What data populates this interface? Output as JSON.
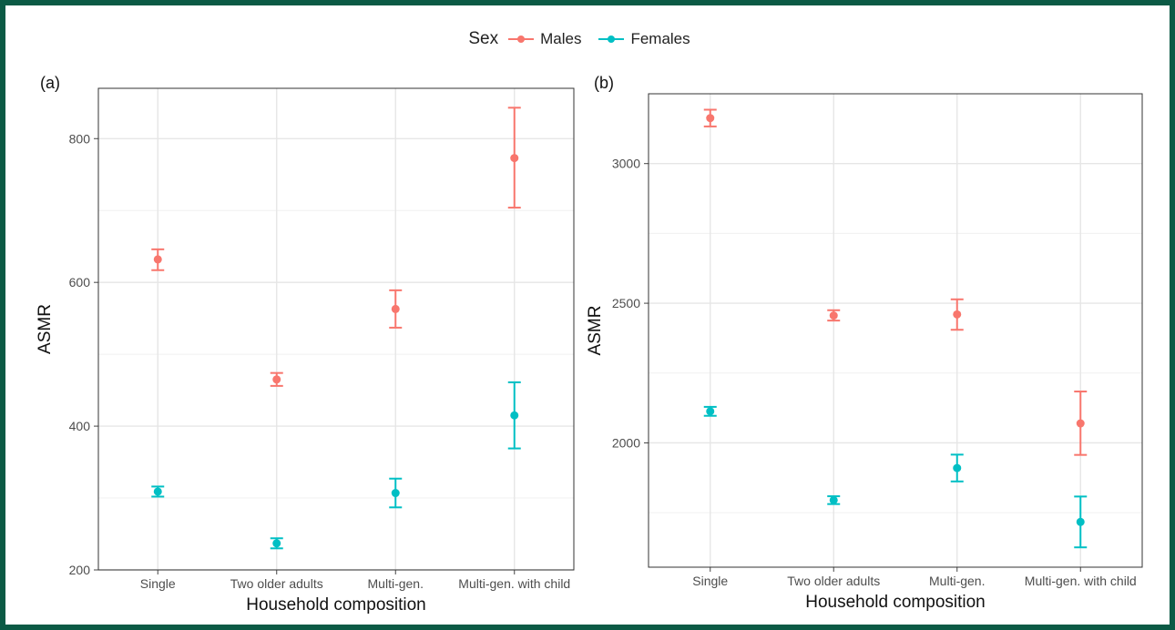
{
  "legend": {
    "title": "Sex",
    "entries": [
      {
        "name": "Males",
        "color": "#F8766D"
      },
      {
        "name": "Females",
        "color": "#00BFC4"
      }
    ]
  },
  "chart_data": [
    {
      "type": "scatter",
      "panel_label": "(a)",
      "xlabel": "Household composition",
      "ylabel": "ASMR",
      "categories": [
        "Single",
        "Two older adults",
        "Multi-gen.",
        "Multi-gen. with child"
      ],
      "ylim": [
        200,
        870
      ],
      "yticks": [
        200,
        400,
        600,
        800
      ],
      "grid": true,
      "legend_position": "top",
      "error_bars": true,
      "series": [
        {
          "name": "Males",
          "color": "#F8766D",
          "values": [
            632,
            465,
            563,
            773
          ],
          "lower": [
            617,
            456,
            537,
            704
          ],
          "upper": [
            646,
            474,
            589,
            843
          ]
        },
        {
          "name": "Females",
          "color": "#00BFC4",
          "values": [
            309,
            237,
            307,
            415
          ],
          "lower": [
            302,
            230,
            287,
            369
          ],
          "upper": [
            316,
            244,
            327,
            461
          ]
        }
      ]
    },
    {
      "type": "scatter",
      "panel_label": "(b)",
      "xlabel": "Household composition",
      "ylabel": "ASMR",
      "categories": [
        "Single",
        "Two older adults",
        "Multi-gen.",
        "Multi-gen. with child"
      ],
      "ylim": [
        1555,
        3250
      ],
      "yticks": [
        2000,
        2500,
        3000
      ],
      "grid": true,
      "legend_position": "top",
      "error_bars": true,
      "series": [
        {
          "name": "Males",
          "color": "#F8766D",
          "values": [
            3163,
            2456,
            2460,
            2070
          ],
          "lower": [
            3133,
            2438,
            2405,
            1957
          ],
          "upper": [
            3193,
            2475,
            2514,
            2184
          ]
        },
        {
          "name": "Females",
          "color": "#00BFC4",
          "values": [
            2113,
            1795,
            1910,
            1717
          ],
          "lower": [
            2097,
            1781,
            1862,
            1626
          ],
          "upper": [
            2129,
            1809,
            1958,
            1808
          ]
        }
      ]
    }
  ]
}
